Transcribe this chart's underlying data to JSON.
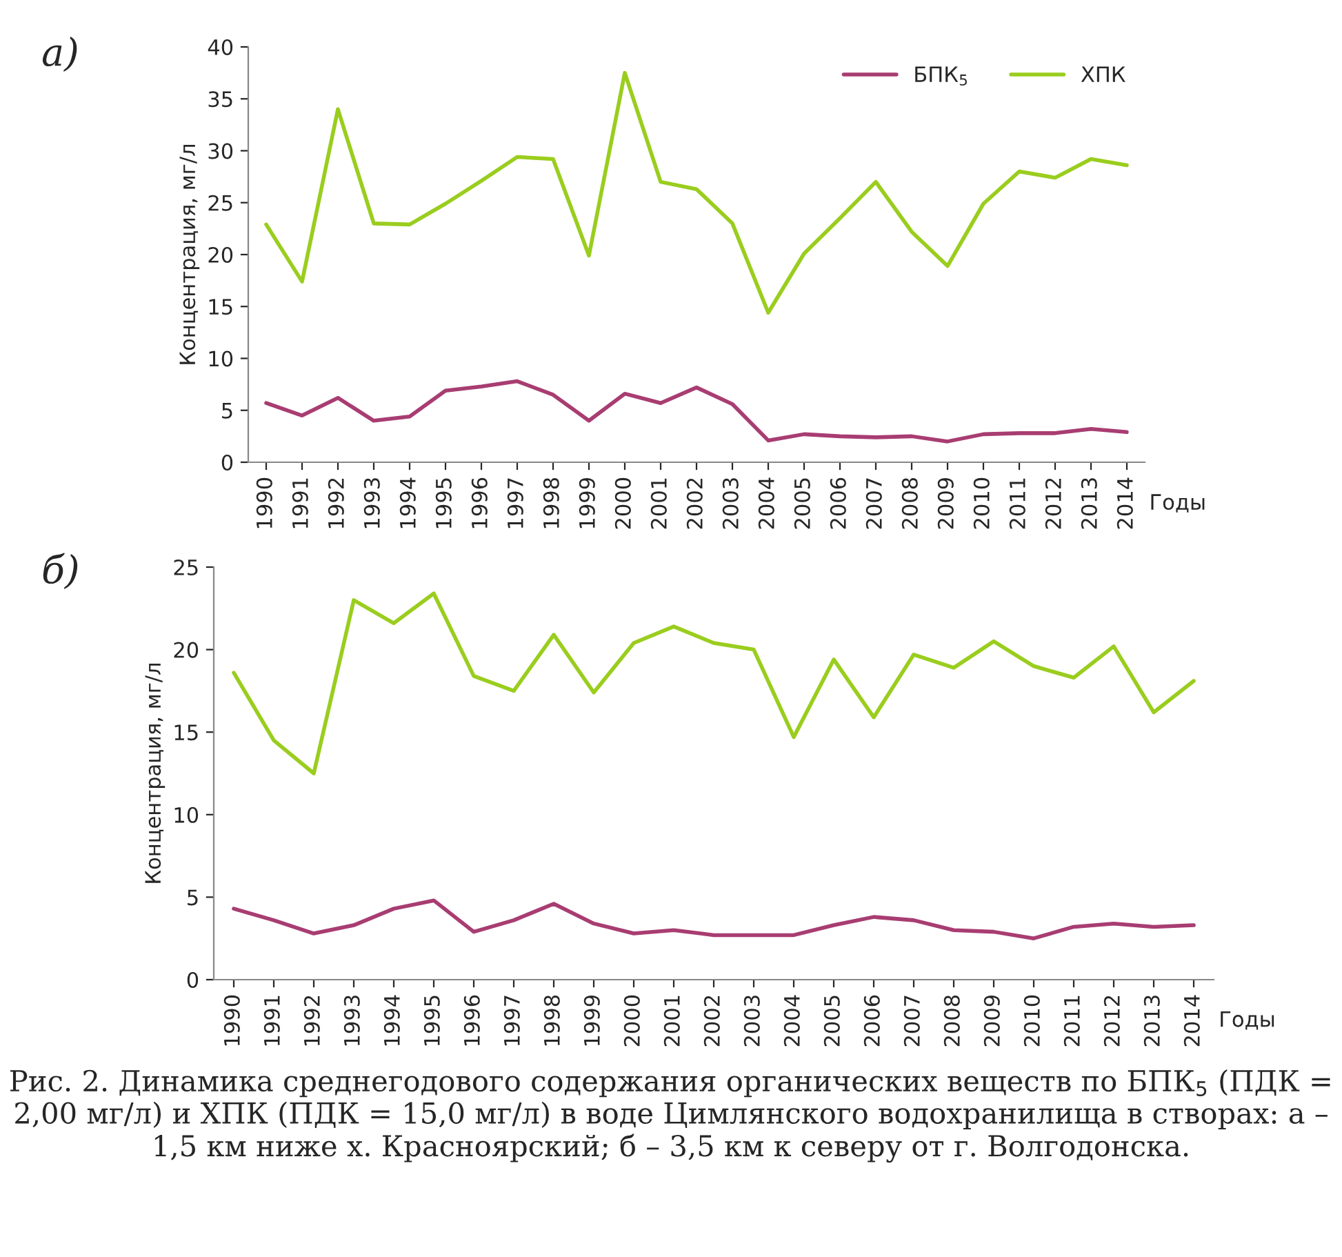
{
  "chart_data": [
    {
      "type": "line",
      "ylabel": "Концентрация, мг/л",
      "xlabel": "Годы",
      "annotations": [
        "а)"
      ],
      "categories": [
        "1990",
        "1991",
        "1992",
        "1993",
        "1994",
        "1995",
        "1996",
        "1997",
        "1998",
        "1999",
        "2000",
        "2001",
        "2002",
        "2003",
        "2004",
        "2005",
        "2006",
        "2007",
        "2008",
        "2009",
        "2010",
        "2011",
        "2012",
        "2013",
        "2014"
      ],
      "series": [
        {
          "name": "БПК$_{5}$",
          "color": "#a83d72",
          "values": [
            5.7,
            4.5,
            6.2,
            4.0,
            4.4,
            6.9,
            7.3,
            7.8,
            6.5,
            4.0,
            6.6,
            5.7,
            7.2,
            5.6,
            2.1,
            2.7,
            2.5,
            2.4,
            2.5,
            2.0,
            2.7,
            2.8,
            2.8,
            3.2,
            2.9
          ]
        },
        {
          "name": "ХПК",
          "color": "#9acd1e",
          "values": [
            22.9,
            17.4,
            34.0,
            23.0,
            22.9,
            24.9,
            27.1,
            29.4,
            29.2,
            19.9,
            37.5,
            27.0,
            26.3,
            23.0,
            14.4,
            20.1,
            23.5,
            27.0,
            22.2,
            18.9,
            24.9,
            28.0,
            27.4,
            29.2,
            28.6
          ]
        }
      ],
      "ylim": [
        0,
        40
      ],
      "yticks": [
        0,
        5,
        10,
        15,
        20,
        25,
        30,
        35,
        40
      ],
      "grid": false,
      "legend": "top right"
    },
    {
      "type": "line",
      "ylabel": "Концентрация, мг/л",
      "xlabel": "Годы",
      "annotations": [
        "б)",
        "Рис. 2. Динамика среднегодового содержания органических веществ по БПК$_{5}$ (ПДК = 2,00 мг/л) и ХПК (ПДК = 15,0 мг/л) в воде Цимлянского водохранилища в створах: а – 1,5 км ниже х. Красноярский; б – 3,5 км к северу от г. Волгодонска."
      ],
      "categories": [
        "1990",
        "1991",
        "1992",
        "1993",
        "1994",
        "1995",
        "1996",
        "1997",
        "1998",
        "1999",
        "2000",
        "2001",
        "2002",
        "2003",
        "2004",
        "2005",
        "2006",
        "2007",
        "2008",
        "2009",
        "2010",
        "2011",
        "2012",
        "2013",
        "2014"
      ],
      "series": [
        {
          "color": "#a83d72",
          "values": [
            4.3,
            3.6,
            2.8,
            3.3,
            4.3,
            4.8,
            2.9,
            3.6,
            4.6,
            3.4,
            2.8,
            3.0,
            2.7,
            2.7,
            2.7,
            3.3,
            3.8,
            3.6,
            3.0,
            2.9,
            2.5,
            3.2,
            3.4,
            3.2,
            3.3
          ]
        },
        {
          "color": "#9acd1e",
          "values": [
            18.6,
            14.5,
            12.5,
            23.0,
            21.6,
            23.4,
            18.4,
            17.5,
            20.9,
            17.4,
            20.4,
            21.4,
            20.4,
            20.0,
            14.7,
            19.4,
            15.9,
            19.7,
            18.9,
            20.5,
            19.0,
            18.3,
            20.2,
            16.2,
            18.1
          ]
        }
      ],
      "ylim": [
        0,
        25
      ],
      "yticks": [
        0,
        5,
        10,
        15,
        20,
        25
      ],
      "grid": false,
      "legend": false
    }
  ]
}
